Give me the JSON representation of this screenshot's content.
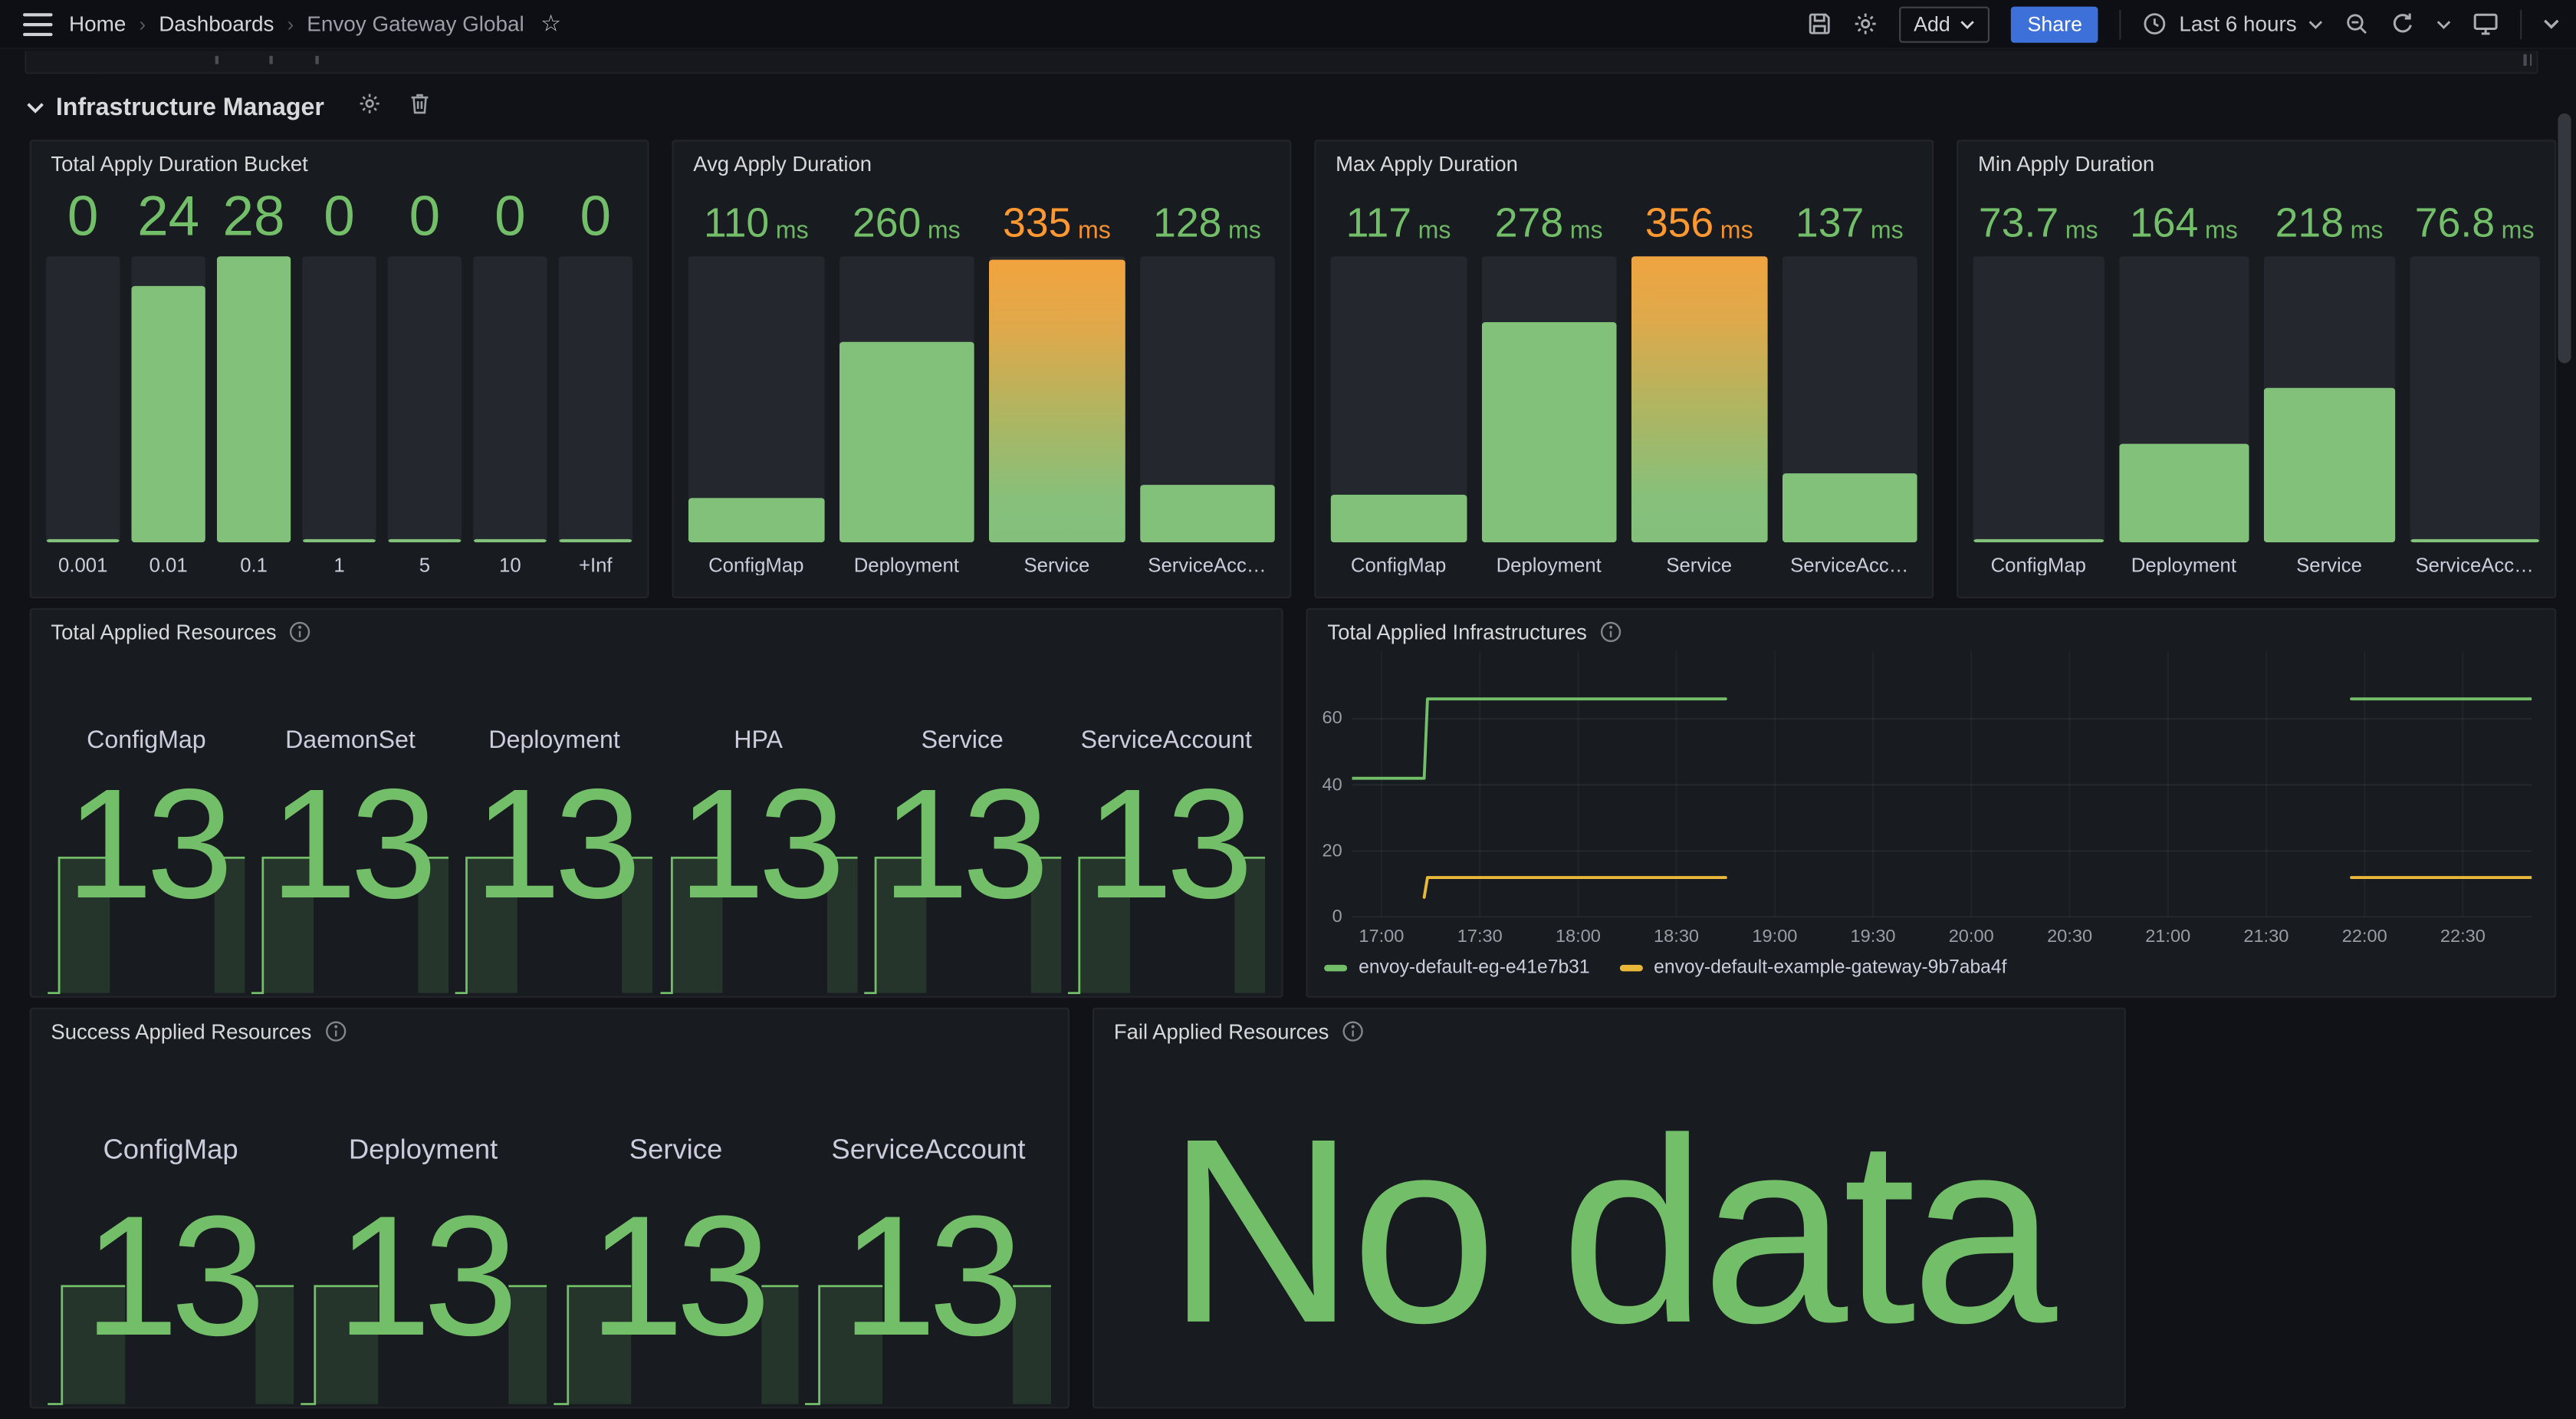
{
  "colors": {
    "green": "#73BF69",
    "orange": "#FF9830",
    "yellow": "#EAB839",
    "blue": "#3D71D9"
  },
  "nav": {
    "breadcrumb": [
      "Home",
      "Dashboards",
      "Envoy Gateway Global"
    ],
    "add_label": "Add",
    "share_label": "Share",
    "time_range": "Last 6 hours"
  },
  "row": {
    "title": "Infrastructure Manager"
  },
  "panels": {
    "bucket": {
      "title": "Total Apply Duration Bucket",
      "bars": [
        {
          "label": "0.001",
          "value": "0",
          "pct": 1
        },
        {
          "label": "0.01",
          "value": "24",
          "pct": 86
        },
        {
          "label": "0.1",
          "value": "28",
          "pct": 100
        },
        {
          "label": "1",
          "value": "0",
          "pct": 1
        },
        {
          "label": "5",
          "value": "0",
          "pct": 1
        },
        {
          "label": "10",
          "value": "0",
          "pct": 1
        },
        {
          "label": "+Inf",
          "value": "0",
          "pct": 1
        }
      ]
    },
    "avg": {
      "title": "Avg Apply Duration",
      "bars": [
        {
          "label": "ConfigMap",
          "value": "110",
          "unit": "ms",
          "pct": 15,
          "color": "green"
        },
        {
          "label": "Deployment",
          "value": "260",
          "unit": "ms",
          "pct": 67,
          "color": "green"
        },
        {
          "label": "Service",
          "value": "335",
          "unit": "ms",
          "pct": 95,
          "color": "orange",
          "gradient": true
        },
        {
          "label": "ServiceAcc…",
          "value": "128",
          "unit": "ms",
          "pct": 19,
          "color": "green"
        }
      ]
    },
    "max": {
      "title": "Max Apply Duration",
      "bars": [
        {
          "label": "ConfigMap",
          "value": "117",
          "unit": "ms",
          "pct": 16,
          "color": "green"
        },
        {
          "label": "Deployment",
          "value": "278",
          "unit": "ms",
          "pct": 74,
          "color": "green"
        },
        {
          "label": "Service",
          "value": "356",
          "unit": "ms",
          "pct": 100,
          "color": "orange",
          "gradient": true
        },
        {
          "label": "ServiceAcc…",
          "value": "137",
          "unit": "ms",
          "pct": 23,
          "color": "green"
        }
      ]
    },
    "min": {
      "title": "Min Apply Duration",
      "bars": [
        {
          "label": "ConfigMap",
          "value": "73.7",
          "unit": "ms",
          "pct": 1,
          "color": "green"
        },
        {
          "label": "Deployment",
          "value": "164",
          "unit": "ms",
          "pct": 33,
          "color": "green"
        },
        {
          "label": "Service",
          "value": "218",
          "unit": "ms",
          "pct": 52,
          "color": "green"
        },
        {
          "label": "ServiceAcc…",
          "value": "76.8",
          "unit": "ms",
          "pct": 1,
          "color": "green"
        }
      ]
    },
    "total_resources": {
      "title": "Total Applied Resources",
      "sparkline": {
        "rise": 5.8,
        "gap_start": 31.5,
        "gap_end": 84.5
      },
      "stats": [
        {
          "label": "ConfigMap",
          "value": "13"
        },
        {
          "label": "DaemonSet",
          "value": "13"
        },
        {
          "label": "Deployment",
          "value": "13"
        },
        {
          "label": "HPA",
          "value": "13"
        },
        {
          "label": "Service",
          "value": "13"
        },
        {
          "label": "ServiceAccount",
          "value": "13"
        }
      ]
    },
    "infra": {
      "title": "Total Applied Infrastructures"
    },
    "success_resources": {
      "title": "Success Applied Resources",
      "sparkline": {
        "rise": 5.8,
        "gap_start": 31.5,
        "gap_end": 84.5
      },
      "stats": [
        {
          "label": "ConfigMap",
          "value": "13"
        },
        {
          "label": "Deployment",
          "value": "13"
        },
        {
          "label": "Service",
          "value": "13"
        },
        {
          "label": "ServiceAccount",
          "value": "13"
        }
      ]
    },
    "fail_resources": {
      "title": "Fail Applied Resources",
      "no_data": "No data"
    }
  },
  "chart_data": [
    {
      "type": "line",
      "title": "Total Applied Infrastructures",
      "x_domain": [
        "16:51",
        "22:51"
      ],
      "x_ticks": [
        "17:00",
        "17:30",
        "18:00",
        "18:30",
        "19:00",
        "19:30",
        "20:00",
        "20:30",
        "21:00",
        "21:30",
        "22:00",
        "22:30"
      ],
      "y_ticks": [
        0,
        20,
        40,
        60
      ],
      "ylim": [
        0,
        80.5
      ],
      "grid": true,
      "legend_position": "bottom",
      "series": [
        {
          "name": "envoy-default-eg-e41e7b31",
          "color": "#73BF69",
          "segments": [
            [
              [
                "16:51",
                42
              ],
              [
                "17:13",
                42
              ],
              [
                "17:14",
                66
              ],
              [
                "18:45",
                66
              ]
            ],
            [
              [
                "21:56",
                66
              ],
              [
                "22:51",
                66
              ]
            ]
          ]
        },
        {
          "name": "envoy-default-example-gateway-9b7aba4f",
          "color": "#EAB839",
          "segments": [
            [
              [
                "17:13",
                6
              ],
              [
                "17:14",
                12
              ],
              [
                "18:45",
                12
              ]
            ],
            [
              [
                "21:56",
                12
              ],
              [
                "22:51",
                12
              ]
            ]
          ]
        }
      ]
    },
    {
      "type": "bar",
      "title": "Total Apply Duration Bucket",
      "categories": [
        "0.001",
        "0.01",
        "0.1",
        "1",
        "5",
        "10",
        "+Inf"
      ],
      "values": [
        0,
        24,
        28,
        0,
        0,
        0,
        0
      ]
    },
    {
      "type": "bar",
      "title": "Avg Apply Duration",
      "unit": "ms",
      "categories": [
        "ConfigMap",
        "Deployment",
        "Service",
        "ServiceAccount"
      ],
      "values": [
        110,
        260,
        335,
        128
      ]
    },
    {
      "type": "bar",
      "title": "Max Apply Duration",
      "unit": "ms",
      "categories": [
        "ConfigMap",
        "Deployment",
        "Service",
        "ServiceAccount"
      ],
      "values": [
        117,
        278,
        356,
        137
      ]
    },
    {
      "type": "bar",
      "title": "Min Apply Duration",
      "unit": "ms",
      "categories": [
        "ConfigMap",
        "Deployment",
        "Service",
        "ServiceAccount"
      ],
      "values": [
        73.7,
        164,
        218,
        76.8
      ]
    },
    {
      "type": "table",
      "title": "Total Applied Resources",
      "categories": [
        "ConfigMap",
        "DaemonSet",
        "Deployment",
        "HPA",
        "Service",
        "ServiceAccount"
      ],
      "values": [
        13,
        13,
        13,
        13,
        13,
        13
      ]
    },
    {
      "type": "table",
      "title": "Success Applied Resources",
      "categories": [
        "ConfigMap",
        "Deployment",
        "Service",
        "ServiceAccount"
      ],
      "values": [
        13,
        13,
        13,
        13
      ]
    },
    {
      "type": "table",
      "title": "Fail Applied Resources",
      "categories": [],
      "values": [],
      "note": "No data"
    }
  ]
}
